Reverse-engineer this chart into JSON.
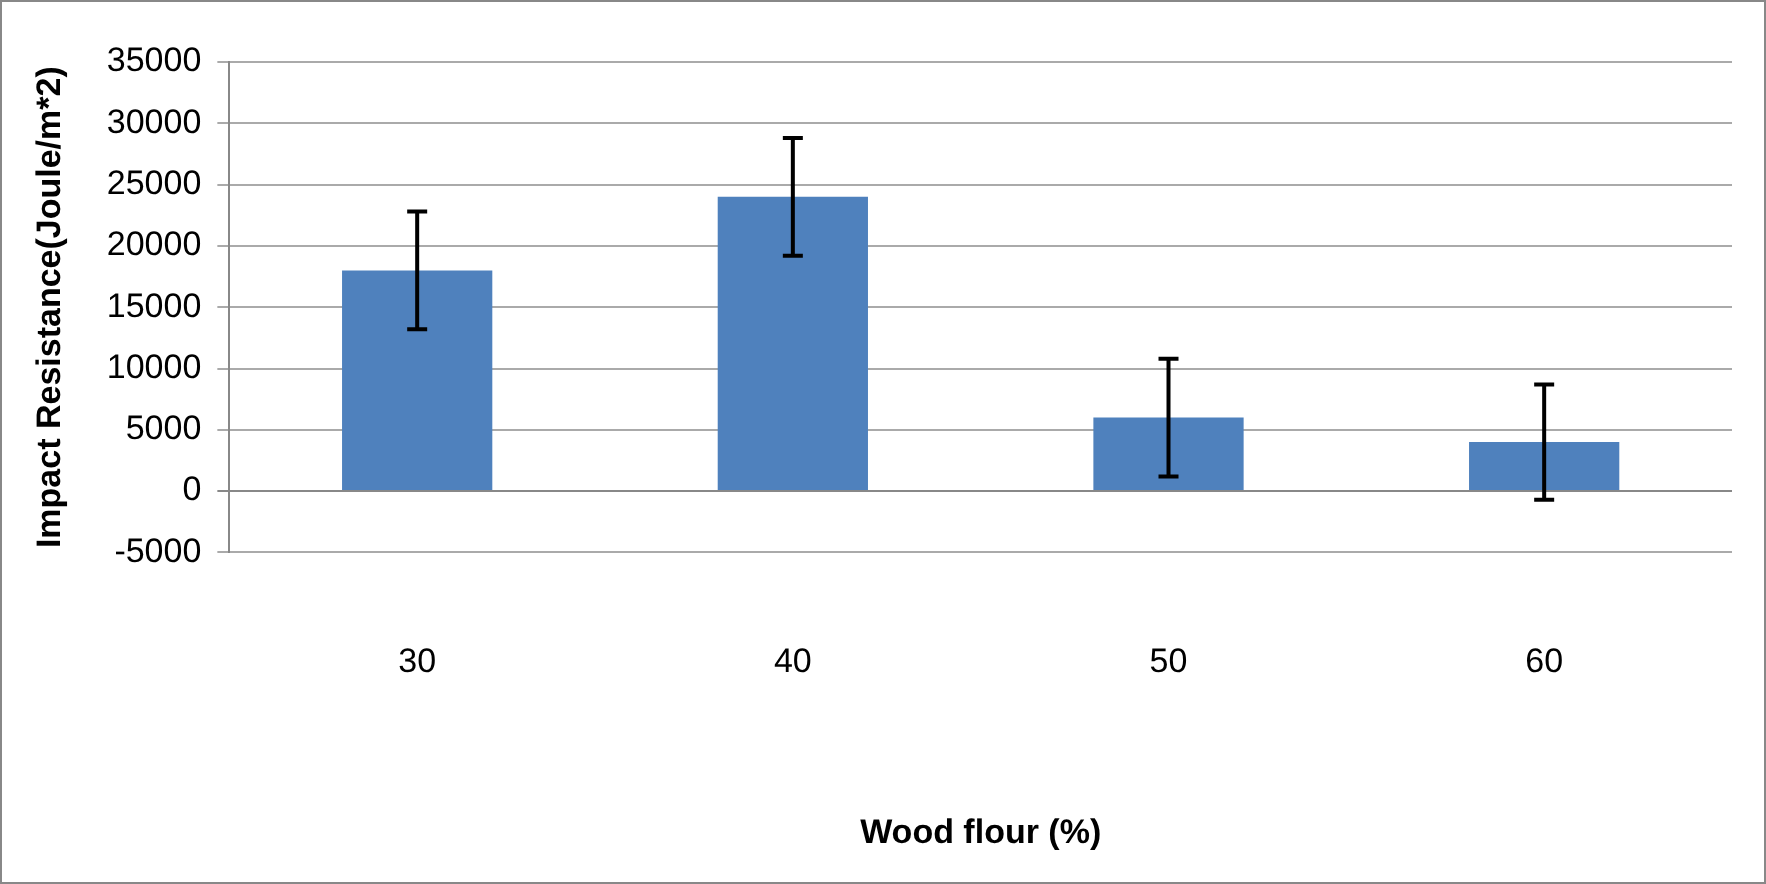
{
  "chart_data": {
    "type": "bar",
    "xlabel": "Wood flour (%)",
    "ylabel": "Impact Resistance(Joule/m*2)",
    "categories": [
      "30",
      "40",
      "50",
      "60"
    ],
    "values": [
      18000,
      24000,
      6000,
      4000
    ],
    "errors": [
      4800,
      4800,
      4800,
      4700
    ],
    "color": "#4f81bd",
    "ylim": [
      -5000,
      35000
    ],
    "yticks": [
      -5000,
      0,
      5000,
      10000,
      15000,
      20000,
      25000,
      30000,
      35000
    ],
    "grid": "y",
    "legend": false
  }
}
